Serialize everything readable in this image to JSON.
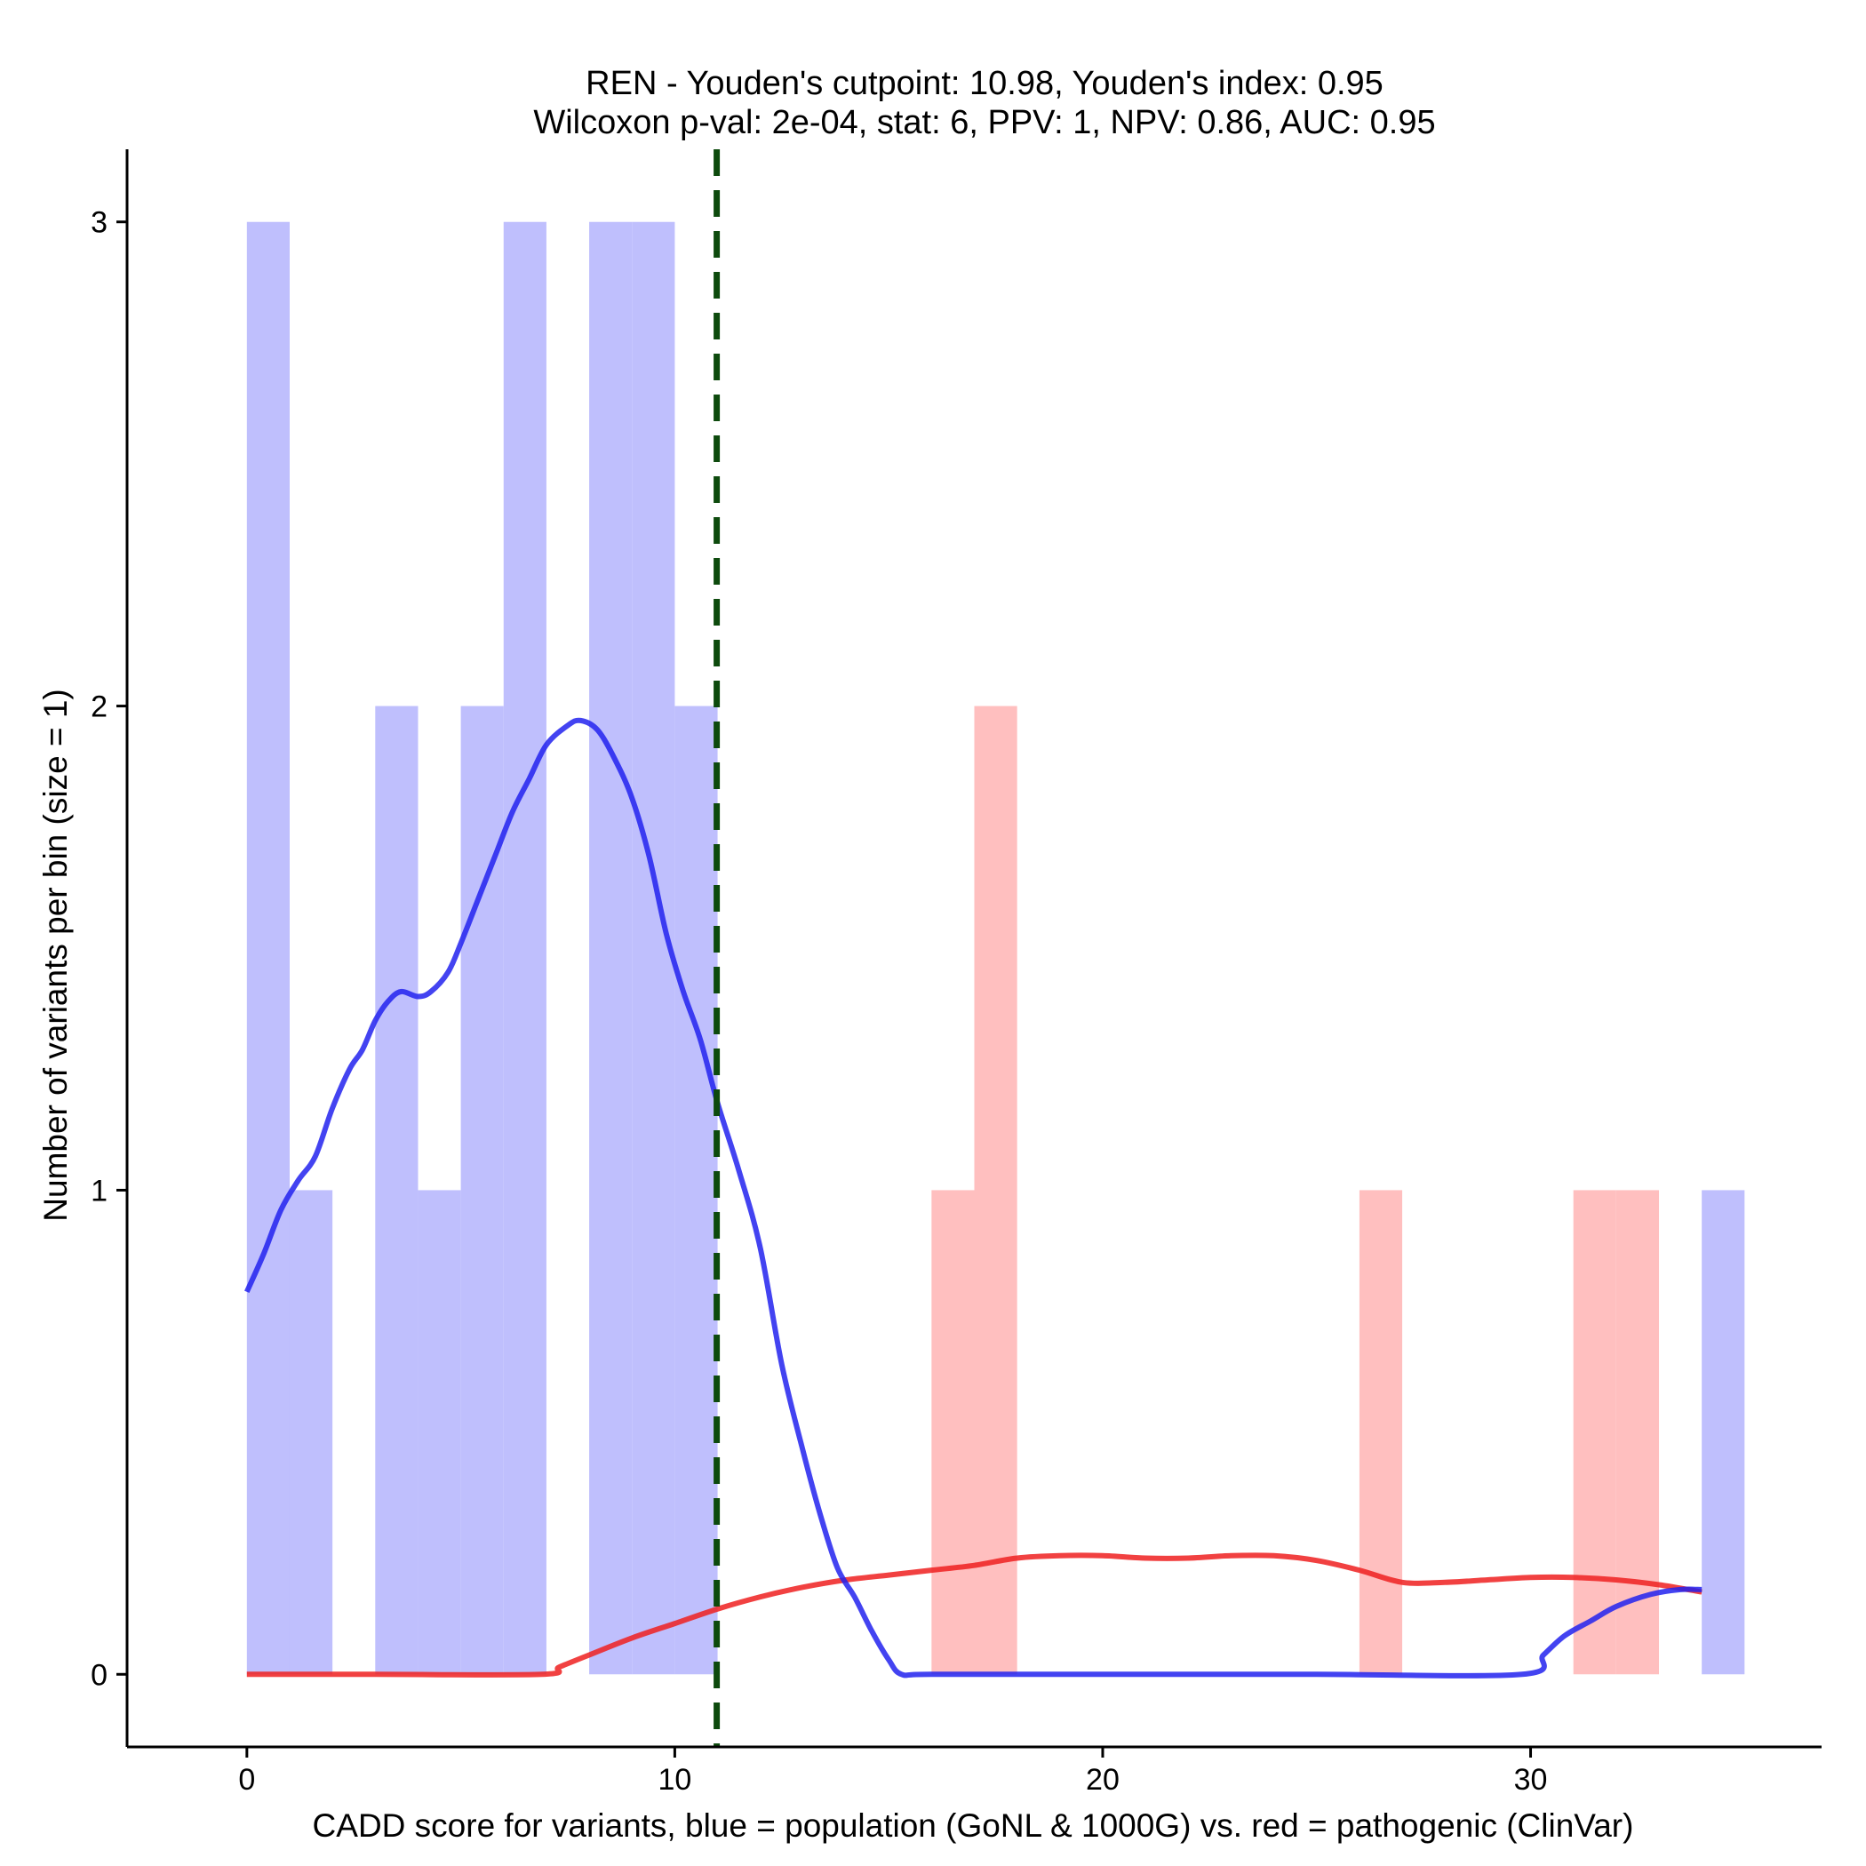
{
  "chart_data": {
    "type": "histogram",
    "title_line1": "REN - Youden's cutpoint: 10.98, Youden's index: 0.95",
    "title_line2": "Wilcoxon p-val: 2e-04, stat: 6, PPV: 1, NPV: 0.86, AUC: 0.95",
    "xlabel": "CADD score for variants, blue = population (GoNL & 1000G) vs. red = pathogenic (ClinVar)",
    "ylabel": "Number of variants per bin (size = 1)",
    "xlim": [
      -2.8,
      36.8
    ],
    "ylim": [
      -0.15,
      3.15
    ],
    "x_ticks": [
      0,
      10,
      20,
      30
    ],
    "y_ticks": [
      0,
      1,
      2,
      3
    ],
    "cutpoint": 10.98,
    "colors": {
      "population": "#2222ee",
      "pathogenic": "#ee2020",
      "cutpoint": "#0d4a0d",
      "population_bar": "#bfbffd",
      "pathogenic_bar": "#ffbfbf"
    },
    "series": [
      {
        "name": "population",
        "bins": [
          {
            "start": 0,
            "end": 1,
            "count": 3
          },
          {
            "start": 1,
            "end": 2,
            "count": 1
          },
          {
            "start": 3,
            "end": 4,
            "count": 2
          },
          {
            "start": 4,
            "end": 5,
            "count": 1
          },
          {
            "start": 5,
            "end": 6,
            "count": 2
          },
          {
            "start": 6,
            "end": 7,
            "count": 3
          },
          {
            "start": 8,
            "end": 9,
            "count": 3
          },
          {
            "start": 9,
            "end": 10,
            "count": 3
          },
          {
            "start": 10,
            "end": 11,
            "count": 2
          },
          {
            "start": 34,
            "end": 35,
            "count": 1
          }
        ],
        "density_curve": [
          [
            0,
            0.79
          ],
          [
            0.4,
            0.87
          ],
          [
            0.8,
            0.96
          ],
          [
            1.2,
            1.02
          ],
          [
            1.6,
            1.07
          ],
          [
            2.0,
            1.17
          ],
          [
            2.4,
            1.25
          ],
          [
            2.7,
            1.29
          ],
          [
            3.0,
            1.35
          ],
          [
            3.3,
            1.39
          ],
          [
            3.6,
            1.41
          ],
          [
            4.0,
            1.4
          ],
          [
            4.3,
            1.41
          ],
          [
            4.7,
            1.45
          ],
          [
            5.0,
            1.51
          ],
          [
            5.4,
            1.6
          ],
          [
            5.8,
            1.69
          ],
          [
            6.2,
            1.78
          ],
          [
            6.6,
            1.85
          ],
          [
            7.0,
            1.92
          ],
          [
            7.5,
            1.96
          ],
          [
            7.8,
            1.97
          ],
          [
            8.2,
            1.95
          ],
          [
            8.6,
            1.89
          ],
          [
            9.0,
            1.81
          ],
          [
            9.4,
            1.69
          ],
          [
            9.8,
            1.53
          ],
          [
            10.2,
            1.41
          ],
          [
            10.6,
            1.31
          ],
          [
            11.0,
            1.18
          ],
          [
            11.5,
            1.04
          ],
          [
            12.0,
            0.88
          ],
          [
            12.5,
            0.64
          ],
          [
            13.0,
            0.46
          ],
          [
            13.4,
            0.33
          ],
          [
            13.8,
            0.22
          ],
          [
            14.2,
            0.16
          ],
          [
            14.6,
            0.09
          ],
          [
            15.0,
            0.03
          ],
          [
            15.3,
            0.0
          ],
          [
            16,
            0.0
          ],
          [
            20,
            0.0
          ],
          [
            25,
            0.0
          ],
          [
            29.8,
            0.0
          ],
          [
            30.3,
            0.04
          ],
          [
            30.8,
            0.08
          ],
          [
            31.4,
            0.11
          ],
          [
            32.0,
            0.14
          ],
          [
            32.8,
            0.165
          ],
          [
            33.5,
            0.175
          ],
          [
            34.0,
            0.175
          ]
        ]
      },
      {
        "name": "pathogenic",
        "bins": [
          {
            "start": 16,
            "end": 17,
            "count": 1
          },
          {
            "start": 17,
            "end": 18,
            "count": 2
          },
          {
            "start": 26,
            "end": 27,
            "count": 1
          },
          {
            "start": 31,
            "end": 32,
            "count": 1
          },
          {
            "start": 32,
            "end": 33,
            "count": 1
          }
        ],
        "density_curve": [
          [
            0,
            0.0
          ],
          [
            3,
            0.0
          ],
          [
            6.9,
            0.0
          ],
          [
            7.3,
            0.015
          ],
          [
            8,
            0.04
          ],
          [
            9,
            0.075
          ],
          [
            10,
            0.105
          ],
          [
            11,
            0.135
          ],
          [
            12,
            0.16
          ],
          [
            13,
            0.18
          ],
          [
            14,
            0.195
          ],
          [
            15,
            0.205
          ],
          [
            16,
            0.215
          ],
          [
            17,
            0.225
          ],
          [
            18,
            0.24
          ],
          [
            19,
            0.245
          ],
          [
            20,
            0.245
          ],
          [
            21,
            0.24
          ],
          [
            22,
            0.24
          ],
          [
            23,
            0.245
          ],
          [
            24,
            0.245
          ],
          [
            25,
            0.235
          ],
          [
            26,
            0.215
          ],
          [
            27,
            0.19
          ],
          [
            28,
            0.19
          ],
          [
            29,
            0.195
          ],
          [
            30,
            0.2
          ],
          [
            31,
            0.2
          ],
          [
            32,
            0.195
          ],
          [
            33,
            0.185
          ],
          [
            34,
            0.17
          ]
        ]
      }
    ]
  }
}
